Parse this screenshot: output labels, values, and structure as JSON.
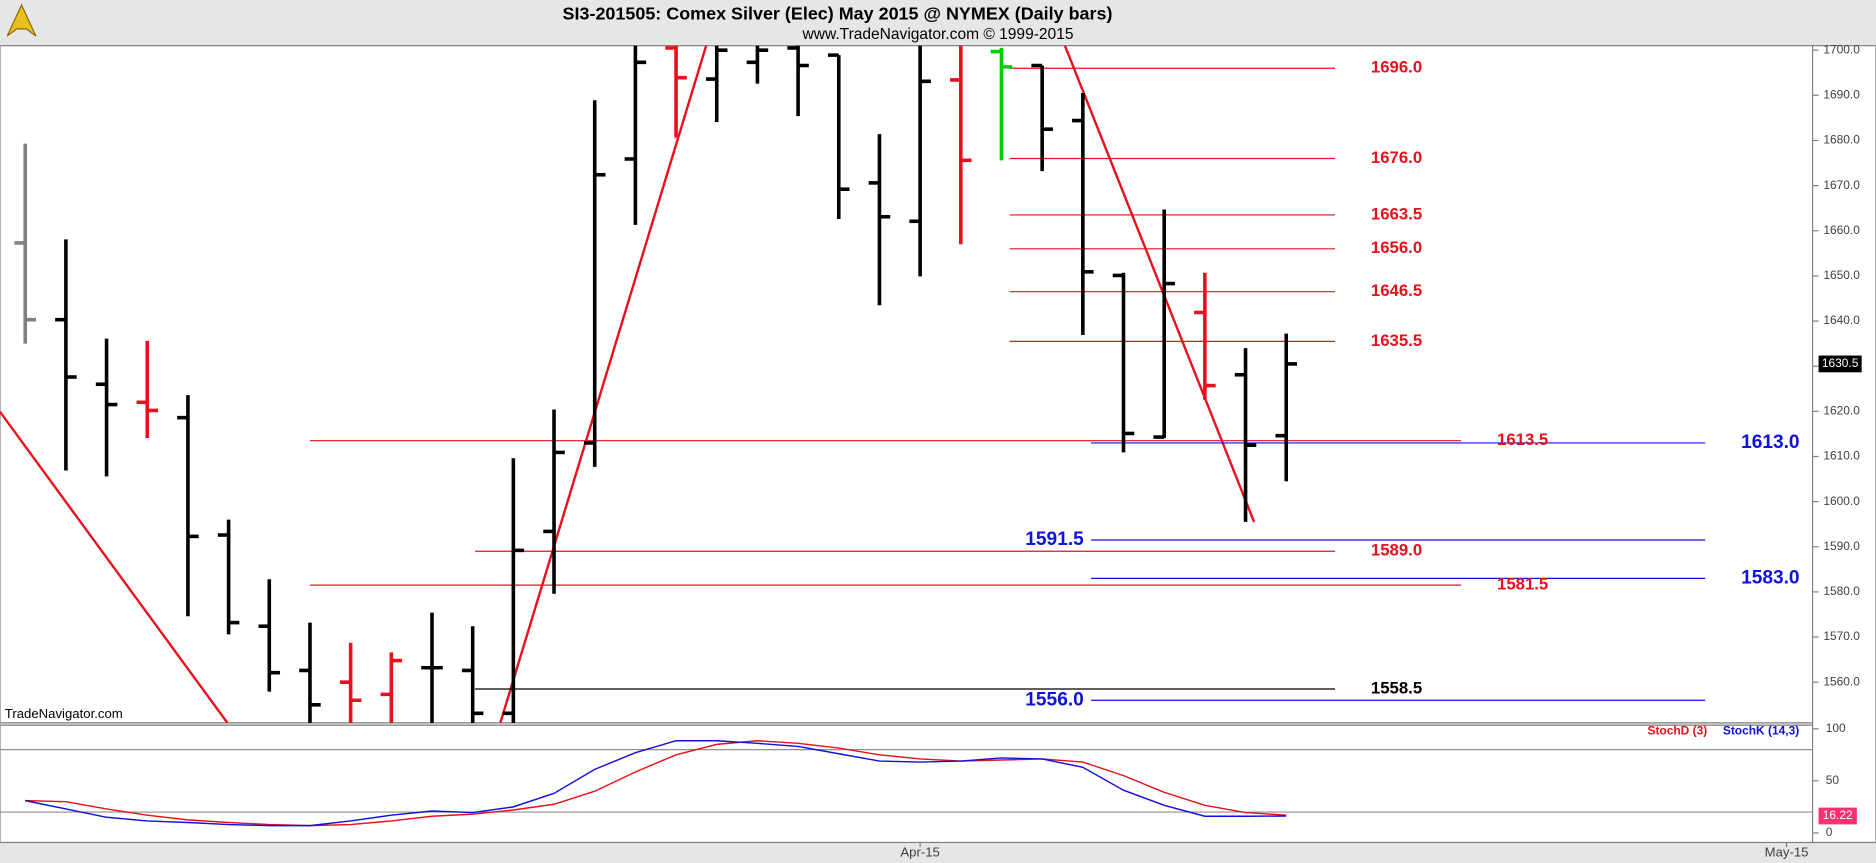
{
  "title": "SI3-201505:  Comex Silver (Elec) May 2015 @ NYMEX  (Daily bars)",
  "subtitle": "www.TradeNavigator.com © 1999-2015",
  "watermark": "TradeNavigator.com",
  "chart_data": [
    {
      "type": "ohlc",
      "x": [
        0,
        1,
        2,
        3,
        4,
        5,
        6,
        7,
        8,
        9,
        10,
        11,
        12,
        13,
        14,
        15,
        16,
        17,
        18,
        19,
        20,
        21,
        22,
        23,
        24,
        25,
        26,
        27,
        28,
        29,
        30,
        31
      ],
      "open": [
        1657.3,
        1640.3,
        1626.0,
        1622.0,
        1618.6,
        1592.6,
        1572.4,
        1562.6,
        1560.0,
        1557.3,
        1563.2,
        1562.6,
        1553.1,
        1593.4,
        1613.0,
        1675.9,
        1700.5,
        1693.6,
        1697.3,
        1700.5,
        1698.9,
        1670.6,
        1662.1,
        1693.4,
        1699.7,
        1696.6,
        1684.4,
        1650.1,
        1614.3,
        1641.9,
        1628.1,
        1614.6
      ],
      "high": [
        1679.3,
        1658.1,
        1636.1,
        1635.6,
        1623.6,
        1596.0,
        1582.8,
        1573.2,
        1568.7,
        1566.6,
        1575.4,
        1572.4,
        1609.6,
        1620.4,
        1688.9,
        1701.0,
        1701.0,
        1701.0,
        1701.0,
        1701.0,
        1698.9,
        1681.4,
        1701.0,
        1701.0,
        1700.5,
        1696.6,
        1690.5,
        1650.7,
        1664.7,
        1650.7,
        1634.0,
        1637.2
      ],
      "low": [
        1635.0,
        1606.9,
        1605.6,
        1614.1,
        1574.6,
        1570.6,
        1557.9,
        1550.0,
        1550.0,
        1550.0,
        1550.0,
        1550.0,
        1550.0,
        1579.6,
        1607.7,
        1661.3,
        1680.6,
        1684.1,
        1692.6,
        1685.4,
        1662.6,
        1643.5,
        1649.9,
        1657.0,
        1675.6,
        1673.2,
        1636.9,
        1610.9,
        1614.1,
        1622.6,
        1595.5,
        1604.5
      ],
      "close": [
        1640.3,
        1627.6,
        1621.5,
        1620.2,
        1592.3,
        1573.2,
        1562.1,
        1555.0,
        1556.0,
        1564.8,
        1563.2,
        1553.1,
        1589.2,
        1610.9,
        1672.4,
        1697.3,
        1693.9,
        1700.0,
        1700.0,
        1696.6,
        1669.2,
        1663.1,
        1693.1,
        1675.6,
        1696.3,
        1682.5,
        1650.9,
        1615.1,
        1648.3,
        1625.7,
        1612.5,
        1630.5
      ],
      "colors": [
        "#808080",
        "#000000",
        "#000000",
        "#e8101c",
        "#000000",
        "#000000",
        "#000000",
        "#000000",
        "#e8101c",
        "#e8101c",
        "#000000",
        "#000000",
        "#000000",
        "#000000",
        "#000000",
        "#000000",
        "#e8101c",
        "#000000",
        "#000000",
        "#000000",
        "#000000",
        "#000000",
        "#000000",
        "#e8101c",
        "#00d000",
        "#000000",
        "#000000",
        "#000000",
        "#000000",
        "#e8101c",
        "#000000",
        "#000000"
      ],
      "xlim": [
        -0.62,
        43.94
      ],
      "xticks": [
        {
          "value": 22,
          "label": "Apr-15"
        },
        {
          "value": 43.3,
          "label": "May-15"
        }
      ],
      "ylim": [
        1551,
        1701
      ],
      "yticks": [
        {
          "value": 1560,
          "label": "1560.0"
        },
        {
          "value": 1570,
          "label": "1570.0"
        },
        {
          "value": 1580,
          "label": "1580.0"
        },
        {
          "value": 1590,
          "label": "1590.0"
        },
        {
          "value": 1600,
          "label": "1600.0"
        },
        {
          "value": 1610,
          "label": "1610.0"
        },
        {
          "value": 1620,
          "label": "1620.0"
        },
        {
          "value": 1630,
          "label": "1630.0"
        },
        {
          "value": 1640,
          "label": "1640.0"
        },
        {
          "value": 1650,
          "label": "1650.0"
        },
        {
          "value": 1660,
          "label": "1660.0"
        },
        {
          "value": 1670,
          "label": "1670.0"
        },
        {
          "value": 1680,
          "label": "1680.0"
        },
        {
          "value": 1690,
          "label": "1690.0"
        },
        {
          "value": 1700,
          "label": "1700.0"
        }
      ],
      "levels": [
        {
          "value": 1696,
          "label": "1696.0",
          "color": "#e8101c",
          "start": 24.2,
          "end": 32.2,
          "label_side": "right"
        },
        {
          "value": 1676,
          "label": "1676.0",
          "color": "#e8101c",
          "start": 24.2,
          "end": 32.2,
          "label_side": "right"
        },
        {
          "value": 1663.5,
          "label": "1663.5",
          "color": "#e8101c",
          "start": 24.2,
          "end": 32.2,
          "label_side": "right"
        },
        {
          "value": 1656,
          "label": "1656.0",
          "color": "#e8101c",
          "start": 24.2,
          "end": 32.2,
          "label_side": "right"
        },
        {
          "value": 1646.5,
          "label": "1646.5",
          "color": "#e8101c",
          "start": 24.2,
          "end": 32.2,
          "label_side": "right"
        },
        {
          "value": 1635.5,
          "label": "1635.5",
          "color": "#e8101c",
          "start": 24.2,
          "end": 32.2,
          "label_side": "right"
        },
        {
          "value": 1613.5,
          "label": "1613.5",
          "color": "#e8101c",
          "start": 7.0,
          "end": 35.3,
          "label_side": "right"
        },
        {
          "value": 1613,
          "label": "1613.0",
          "color": "#1010e0",
          "start": 26.2,
          "end": 41.3,
          "label_side": "right"
        },
        {
          "value": 1591.5,
          "label": "1591.5",
          "color": "#1010e0",
          "start": 26.2,
          "end": 41.3,
          "label_side": "left"
        },
        {
          "value": 1589,
          "label": "1589.0",
          "color": "#e8101c",
          "start": 11.06,
          "end": 32.2,
          "label_side": "right"
        },
        {
          "value": 1583,
          "label": "1583.0",
          "color": "#1010e0",
          "start": 26.2,
          "end": 41.3,
          "label_side": "right"
        },
        {
          "value": 1581.5,
          "label": "1581.5",
          "color": "#e8101c",
          "start": 7.0,
          "end": 35.3,
          "label_side": "right"
        },
        {
          "value": 1558.5,
          "label": "1558.5",
          "color": "#000000",
          "start": 11.06,
          "end": 32.2,
          "label_side": "right"
        },
        {
          "value": 1556,
          "label": "1556.0",
          "color": "#1010e0",
          "start": 26.2,
          "end": 41.3,
          "label_side": "left"
        }
      ],
      "trendlines": [
        {
          "x": [
            -0.62,
            4.97
          ],
          "y": [
            1619.9,
            1551
          ],
          "color": "#e8101c"
        },
        {
          "x": [
            11.68,
            16.74
          ],
          "y": [
            1551,
            1701
          ],
          "color": "#e8101c"
        },
        {
          "x": [
            25.56,
            30.21
          ],
          "y": [
            1701,
            1595.5
          ],
          "color": "#e8101c"
        }
      ]
    },
    {
      "type": "line",
      "x": [
        0,
        1,
        2,
        3,
        4,
        5,
        6,
        7,
        8,
        9,
        10,
        11,
        12,
        13,
        14,
        15,
        16,
        17,
        18,
        19,
        20,
        21,
        22,
        23,
        24,
        25,
        26,
        27,
        28,
        29,
        30,
        31
      ],
      "xlim": [
        -0.62,
        43.94
      ],
      "ylim": [
        -9.2,
        103.4
      ],
      "yticks": [
        0,
        50,
        100
      ],
      "reference_lines": [
        20,
        80
      ],
      "series": [
        {
          "name": "StochD (3)",
          "color": "#e8101c",
          "values": [
            31,
            30,
            23,
            17,
            12.5,
            10,
            8,
            7,
            8,
            11.5,
            16,
            18,
            22,
            27.5,
            40,
            58.5,
            75,
            85,
            88.5,
            86,
            81.5,
            75,
            71,
            69,
            70,
            71,
            68,
            55,
            39,
            26.5,
            19.5,
            17
          ]
        },
        {
          "name": "StochK (14,3)",
          "color": "#1010e0",
          "values": [
            31,
            23,
            15,
            11.5,
            10,
            8,
            7,
            7,
            11.5,
            17,
            21,
            19.5,
            25,
            38,
            61,
            77,
            88.5,
            88.5,
            86,
            83,
            76,
            69,
            68,
            69,
            72,
            71,
            63,
            41,
            26.5,
            16,
            16,
            16.22
          ]
        }
      ]
    }
  ]
}
